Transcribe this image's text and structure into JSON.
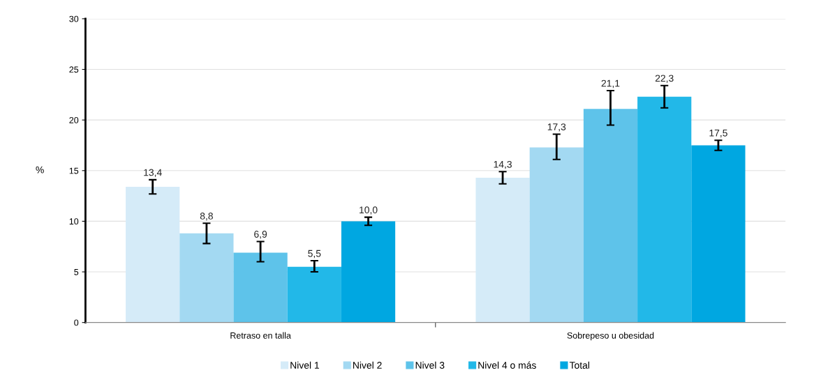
{
  "chart_data": {
    "type": "bar",
    "ylabel": "%",
    "categories": [
      "Retraso en talla",
      "Sobrepeso u obesidad"
    ],
    "series": [
      {
        "name": "Nivel 1",
        "color": "#d5ebf8",
        "values": [
          13.4,
          14.3
        ],
        "value_labels": [
          "13,4",
          "14,3"
        ],
        "errors": [
          [
            12.7,
            14.1
          ],
          [
            13.7,
            14.9
          ]
        ]
      },
      {
        "name": "Nivel 2",
        "color": "#a3d9f2",
        "values": [
          8.8,
          17.3
        ],
        "value_labels": [
          "8,8",
          "17,3"
        ],
        "errors": [
          [
            7.8,
            9.8
          ],
          [
            16.1,
            18.6
          ]
        ]
      },
      {
        "name": "Nivel 3",
        "color": "#5ec3ea",
        "values": [
          6.9,
          21.1
        ],
        "value_labels": [
          "6,9",
          "21,1"
        ],
        "errors": [
          [
            6.0,
            8.0
          ],
          [
            19.5,
            22.9
          ]
        ]
      },
      {
        "name": "Nivel 4 o más",
        "color": "#22b8e8",
        "values": [
          5.5,
          22.3
        ],
        "value_labels": [
          "5,5",
          "22,3"
        ],
        "errors": [
          [
            5.0,
            6.1
          ],
          [
            21.2,
            23.4
          ]
        ]
      },
      {
        "name": "Total",
        "color": "#00a7e1",
        "values": [
          10.0,
          17.5
        ],
        "value_labels": [
          "10,0",
          "17,5"
        ],
        "errors": [
          [
            9.6,
            10.4
          ],
          [
            17.0,
            18.0
          ]
        ]
      }
    ],
    "ylim": [
      0,
      30
    ],
    "yticks": [
      0,
      5,
      10,
      15,
      20,
      25,
      30
    ],
    "grid": "y",
    "legend": "bottom"
  }
}
